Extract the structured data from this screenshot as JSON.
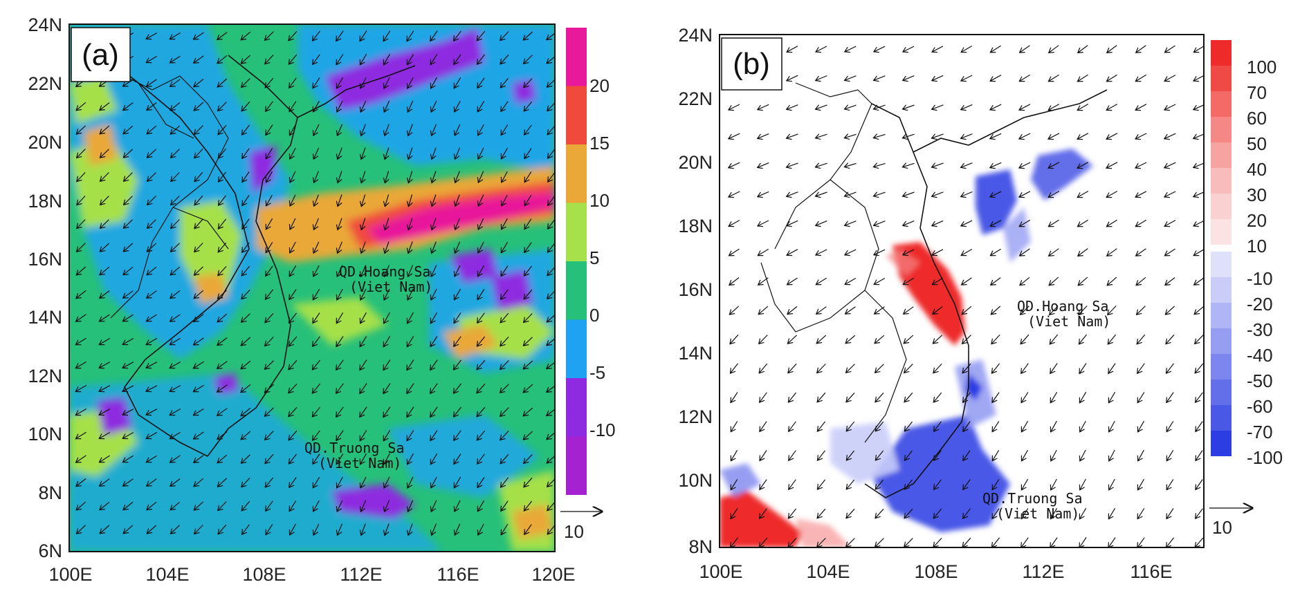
{
  "panels": [
    {
      "label": "(a)",
      "lat_ticks": [
        "24N",
        "22N",
        "20N",
        "18N",
        "16N",
        "14N",
        "12N",
        "10N",
        "8N",
        "6N"
      ],
      "lon_ticks": [
        "100E",
        "104E",
        "108E",
        "112E",
        "116E",
        "120E"
      ],
      "colorbar": {
        "labels": [
          "20",
          "15",
          "10",
          "5",
          "0",
          "-5",
          "-10"
        ],
        "colors": [
          "#e8199a",
          "#f04a3c",
          "#e9a838",
          "#a6e04a",
          "#27c07a",
          "#1fa2f2",
          "#8e2be0",
          "#a422d0"
        ]
      },
      "islands": [
        "QD.Hoang Sa",
        "(Viet Nam)",
        "QD.Truong Sa",
        "(Viet Nam)"
      ],
      "vector_ref": "10"
    },
    {
      "label": "(b)",
      "lat_ticks": [
        "24N",
        "22N",
        "20N",
        "18N",
        "16N",
        "14N",
        "12N",
        "10N",
        "8N"
      ],
      "lon_ticks": [
        "100E",
        "104E",
        "108E",
        "112E",
        "116E"
      ],
      "colorbar": {
        "labels": [
          "100",
          "70",
          "60",
          "50",
          "40",
          "30",
          "20",
          "10",
          "-10",
          "-20",
          "-30",
          "-40",
          "-50",
          "-60",
          "-70",
          "-100"
        ],
        "colors": [
          "#ee2a2a",
          "#f04a47",
          "#f36a66",
          "#f58886",
          "#f7a3a2",
          "#f9bcbc",
          "#fad1d1",
          "#fce3e3",
          "#dfe1fb",
          "#c9cdf8",
          "#b0b6f5",
          "#969ef2",
          "#7d86ee",
          "#636ee9",
          "#4a58e6",
          "#2c3ee2"
        ]
      },
      "islands": [
        "QD.Hoang Sa",
        "(Viet Nam)",
        "QD.Truong Sa",
        "(Viet Nam)"
      ],
      "vector_ref": "10"
    }
  ]
}
